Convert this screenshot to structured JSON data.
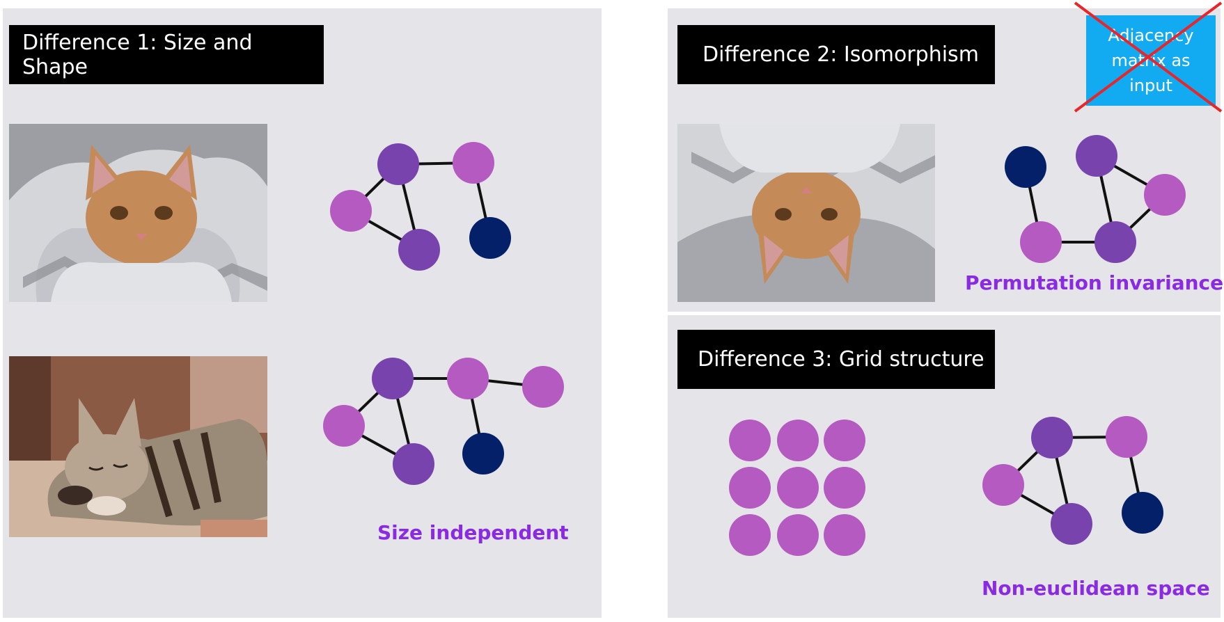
{
  "colors": {
    "light_purple": "#b45ac0",
    "dark_purple": "#7843ac",
    "navy": "#032068",
    "caption": "#8a2be2",
    "badge": "#12aaf1",
    "cross": "#e8262a"
  },
  "panel1": {
    "title": "Difference 1: Size and Shape",
    "caption": "Size independent",
    "images": [
      "cat-under-blanket-photo",
      "sleeping-kitten-photo"
    ]
  },
  "panel2": {
    "title": "Difference 2: Isomorphism",
    "caption": "Permutation invariance",
    "badge": {
      "line1": "Adjacency",
      "line2": "matrix as",
      "line3": "input",
      "crossed_out": true
    },
    "images": [
      "upside-down-cat-photo"
    ]
  },
  "panel3": {
    "title": "Difference 3: Grid structure",
    "caption": "Non-euclidean space",
    "grid": {
      "rows": 3,
      "cols": 3
    }
  }
}
